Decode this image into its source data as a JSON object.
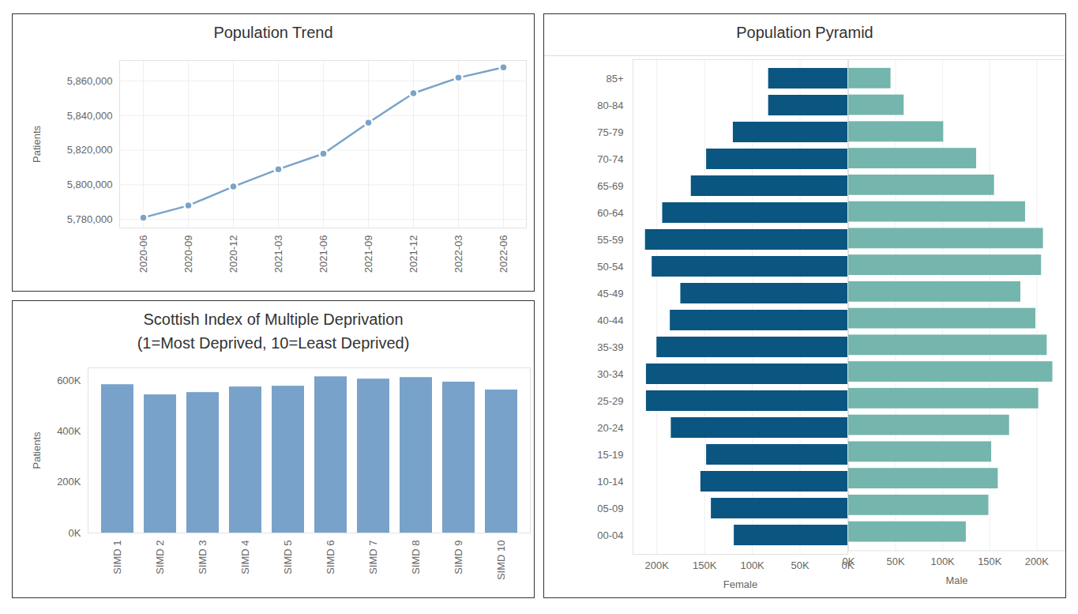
{
  "chart_data": [
    {
      "type": "line",
      "title": "Population Trend",
      "ylabel": "Patients",
      "x": [
        "2020-06",
        "2020-09",
        "2020-12",
        "2021-03",
        "2021-06",
        "2021-09",
        "2021-12",
        "2022-03",
        "2022-06"
      ],
      "values": [
        5781000,
        5788000,
        5799000,
        5809000,
        5818000,
        5836000,
        5853000,
        5862000,
        5868000
      ],
      "color": "#7aa3c8",
      "marker": "circle",
      "ylim": [
        5775000,
        5872000
      ],
      "yticks": [
        {
          "value": 5780000,
          "label": "5,780,000"
        },
        {
          "value": 5800000,
          "label": "5,800,000"
        },
        {
          "value": 5820000,
          "label": "5,820,000"
        },
        {
          "value": 5840000,
          "label": "5,840,000"
        },
        {
          "value": 5860000,
          "label": "5,860,000"
        }
      ],
      "grid": true
    },
    {
      "type": "bar",
      "title": "Scottish Index of Multiple Deprivation",
      "subtitle": "(1=Most Deprived, 10=Least Deprived)",
      "ylabel": "Patients",
      "categories": [
        "SIMD 1",
        "SIMD 2",
        "SIMD 3",
        "SIMD 4",
        "SIMD 5",
        "SIMD 6",
        "SIMD 7",
        "SIMD 8",
        "SIMD 9",
        "SIMD 10"
      ],
      "values": [
        584000,
        544000,
        553000,
        575000,
        578000,
        615000,
        606000,
        612000,
        594000,
        563000
      ],
      "color": "#78a2c9",
      "ylim": [
        0,
        650000
      ],
      "yticks": [
        {
          "value": 0,
          "label": "0K"
        },
        {
          "value": 200000,
          "label": "200K"
        },
        {
          "value": 400000,
          "label": "400K"
        },
        {
          "value": 600000,
          "label": "600K"
        }
      ],
      "grid": false
    },
    {
      "type": "bar",
      "title": "Population Pyramid",
      "orientation": "horizontal",
      "grid": true,
      "categories": [
        "85+",
        "80-84",
        "75-79",
        "70-74",
        "65-69",
        "60-64",
        "55-59",
        "50-54",
        "45-49",
        "40-44",
        "35-39",
        "30-34",
        "25-29",
        "20-24",
        "15-19",
        "10-14",
        "05-09",
        "00-04"
      ],
      "series": [
        {
          "name": "Female",
          "color": "#0b5581",
          "values": [
            83000,
            83000,
            120000,
            148000,
            164000,
            194000,
            212000,
            205000,
            175000,
            186000,
            200000,
            211000,
            211000,
            185000,
            148000,
            154000,
            143000,
            119000
          ],
          "xlim": [
            0,
            225000
          ],
          "xticks": [
            {
              "value": 0,
              "label": "0K"
            },
            {
              "value": 50000,
              "label": "50K"
            },
            {
              "value": 100000,
              "label": "100K"
            },
            {
              "value": 150000,
              "label": "150K"
            },
            {
              "value": 200000,
              "label": "200K"
            }
          ]
        },
        {
          "name": "Male",
          "color": "#74b5ad",
          "values": [
            45000,
            59000,
            101000,
            136000,
            155000,
            188000,
            207000,
            205000,
            183000,
            199000,
            211000,
            217000,
            202000,
            171000,
            152000,
            159000,
            149000,
            125000
          ],
          "xlim": [
            0,
            230000
          ],
          "xticks": [
            {
              "value": 0,
              "label": "0K"
            },
            {
              "value": 50000,
              "label": "50K"
            },
            {
              "value": 100000,
              "label": "100K"
            },
            {
              "value": 150000,
              "label": "150K"
            },
            {
              "value": 200000,
              "label": "200K"
            }
          ]
        }
      ]
    }
  ]
}
